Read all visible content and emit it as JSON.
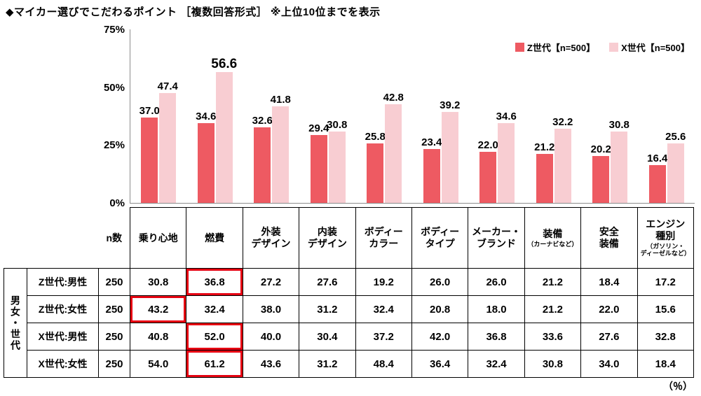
{
  "page": {
    "title": "◆マイカー選びでこだわるポイント ［複数回答形式］ ※上位10位までを表示",
    "unit_note": "（％）"
  },
  "legend": {
    "items": [
      {
        "label": "Z世代【n=500】",
        "color": "#ee5a62"
      },
      {
        "label": "X世代【n=500】",
        "color": "#f8cdd2"
      }
    ]
  },
  "chart_data": {
    "type": "bar",
    "title": "マイカー選びでこだわるポイント ［複数回答形式］ 上位10位までを表示",
    "categories": [
      "乗り心地",
      "燃費",
      "外装デザイン",
      "内装デザイン",
      "ボディーカラー",
      "ボディータイプ",
      "メーカー・ブランド",
      "装備（カーナビなど）",
      "安全装備",
      "エンジン種別（ガソリン・ディーゼルなど）"
    ],
    "series": [
      {
        "name": "Z世代【n=500】",
        "color": "#ee5a62",
        "values": [
          37.0,
          34.6,
          32.6,
          29.4,
          25.8,
          23.4,
          22.0,
          21.2,
          20.2,
          16.4
        ]
      },
      {
        "name": "X世代【n=500】",
        "color": "#f8cdd2",
        "values": [
          47.4,
          56.6,
          41.8,
          30.8,
          42.8,
          39.2,
          34.6,
          32.2,
          30.8,
          25.6
        ]
      }
    ],
    "ylim": [
      0,
      75
    ],
    "yticks": [
      {
        "label": "75%",
        "value": 75
      },
      {
        "label": "50%",
        "value": 50
      },
      {
        "label": "25%",
        "value": 25
      },
      {
        "label": "0%",
        "value": 0
      }
    ],
    "grid": false,
    "legend_position": "top-right",
    "emphasized_label": {
      "series": 1,
      "index": 1
    }
  },
  "table": {
    "group_label": "男女・世代",
    "n_label": "n数",
    "columns": [
      {
        "main": "乗り心地",
        "sub": ""
      },
      {
        "main": "燃費",
        "sub": ""
      },
      {
        "main": "外装\nデザイン",
        "sub": ""
      },
      {
        "main": "内装\nデザイン",
        "sub": ""
      },
      {
        "main": "ボディー\nカラー",
        "sub": ""
      },
      {
        "main": "ボディー\nタイプ",
        "sub": ""
      },
      {
        "main": "メーカー・\nブランド",
        "sub": ""
      },
      {
        "main": "装備",
        "sub": "（カーナビなど）"
      },
      {
        "main": "安全\n装備",
        "sub": ""
      },
      {
        "main": "エンジン\n種別",
        "sub": "（ガソリン・\nディーゼルなど）"
      }
    ],
    "rows": [
      {
        "label": "Z世代:男性",
        "n": "250",
        "highlight_col": 1,
        "values": [
          "30.8",
          "36.8",
          "27.2",
          "27.6",
          "19.2",
          "26.0",
          "26.0",
          "21.2",
          "18.4",
          "17.2"
        ]
      },
      {
        "label": "Z世代:女性",
        "n": "250",
        "highlight_col": 0,
        "values": [
          "43.2",
          "32.4",
          "38.0",
          "31.2",
          "32.4",
          "20.8",
          "18.0",
          "21.2",
          "22.0",
          "15.6"
        ]
      },
      {
        "label": "X世代:男性",
        "n": "250",
        "highlight_col": 1,
        "values": [
          "40.8",
          "52.0",
          "40.0",
          "30.4",
          "37.2",
          "42.0",
          "36.8",
          "33.6",
          "27.6",
          "32.8"
        ]
      },
      {
        "label": "X世代:女性",
        "n": "250",
        "highlight_col": 1,
        "values": [
          "54.0",
          "61.2",
          "43.6",
          "31.2",
          "48.4",
          "36.4",
          "32.4",
          "30.8",
          "34.0",
          "18.4"
        ]
      }
    ]
  }
}
